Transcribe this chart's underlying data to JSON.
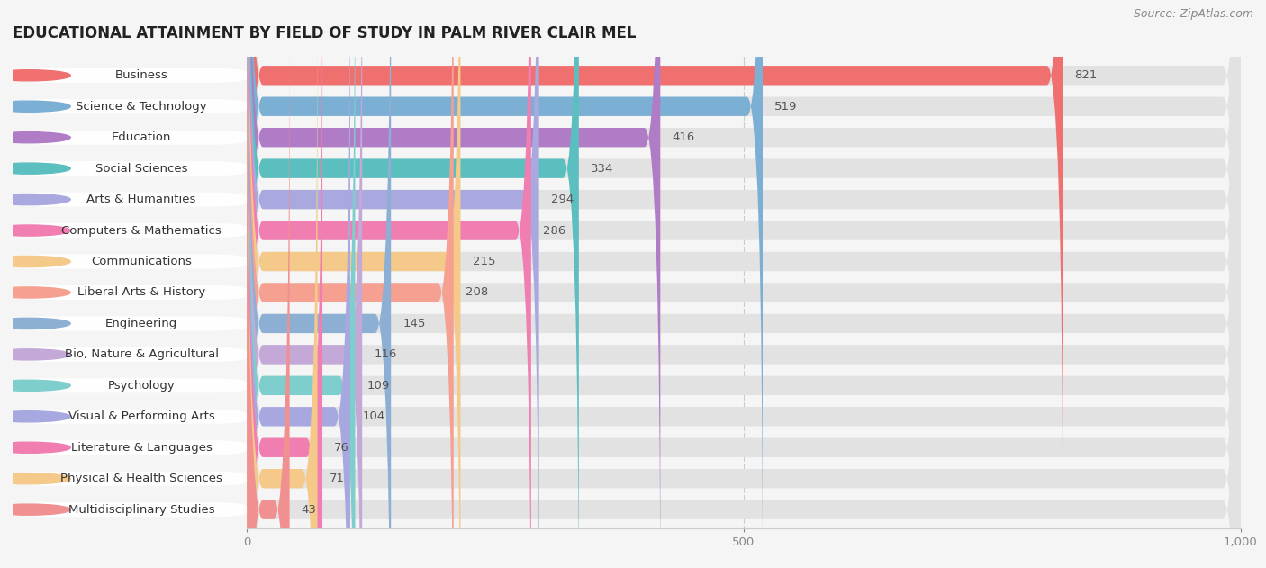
{
  "title": "EDUCATIONAL ATTAINMENT BY FIELD OF STUDY IN PALM RIVER CLAIR MEL",
  "source": "Source: ZipAtlas.com",
  "categories": [
    "Business",
    "Science & Technology",
    "Education",
    "Social Sciences",
    "Arts & Humanities",
    "Computers & Mathematics",
    "Communications",
    "Liberal Arts & History",
    "Engineering",
    "Bio, Nature & Agricultural",
    "Psychology",
    "Visual & Performing Arts",
    "Literature & Languages",
    "Physical & Health Sciences",
    "Multidisciplinary Studies"
  ],
  "values": [
    821,
    519,
    416,
    334,
    294,
    286,
    215,
    208,
    145,
    116,
    109,
    104,
    76,
    71,
    43
  ],
  "bar_colors": [
    "#F07070",
    "#7BAFD4",
    "#B07CC6",
    "#5BBFBF",
    "#A9A9E0",
    "#F07EB0",
    "#F5C98A",
    "#F5A090",
    "#8EAFD4",
    "#C4A8D8",
    "#7ECECE",
    "#A8A8E0",
    "#F07EB0",
    "#F5C98A",
    "#F09090"
  ],
  "background_color": "#f5f5f5",
  "bar_background_color": "#e2e2e2",
  "xlim": [
    0,
    1000
  ],
  "xticks": [
    0,
    500,
    1000
  ],
  "title_fontsize": 12,
  "label_fontsize": 9.5,
  "value_fontsize": 9.5,
  "source_fontsize": 9
}
